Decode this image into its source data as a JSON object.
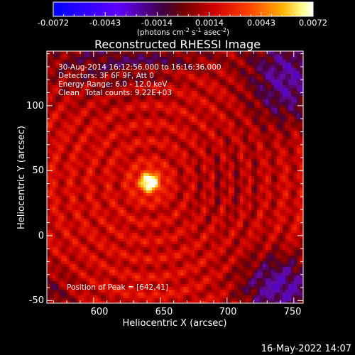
{
  "chart_data": {
    "type": "heatmap",
    "title": "Reconstructed RHESSI Image",
    "xlabel": "Heliocentric X (arcsec)",
    "ylabel": "Heliocentric Y (arcsec)",
    "xlim": [
      565,
      757
    ],
    "ylim": [
      -52,
      142
    ],
    "x_ticks": [
      "600",
      "650",
      "700",
      "750"
    ],
    "y_ticks": [
      "-50",
      "0",
      "50",
      "100"
    ],
    "colorbar": {
      "min": -0.0072,
      "max": 0.0072,
      "ticks": [
        "-0.0072",
        "-0.0043",
        "-0.0014",
        "0.0014",
        "0.0043",
        "0.0072"
      ],
      "unit_label": "(photons cm",
      "unit_exp1": "-2",
      "unit_mid": " s",
      "unit_exp2": "-1",
      "unit_mid2": " asec",
      "unit_exp3": "-2",
      "unit_end": ")"
    },
    "annotations": {
      "line1": "30-Aug-2014 16:12:56.000 to 16:16:36.000",
      "line2": "Detectors: 3F 6F 9F, Att 0",
      "line3": "Energy Range: 6.0 - 12.0 keV",
      "line4_a": "Clean",
      "line4_b": "Total counts: 9.22E+03",
      "peak": "Position of Peak = [642,41]"
    },
    "peak": {
      "x": 642,
      "y": 41
    }
  },
  "footer_timestamp": "16-May-2022 14:07",
  "colors": {
    "colormap": [
      "#0000ff",
      "#4000ff",
      "#8000ff",
      "#3a0030",
      "#800000",
      "#c00000",
      "#ff0000",
      "#ff6000",
      "#ffb000",
      "#ffff80",
      "#ffffff"
    ]
  }
}
